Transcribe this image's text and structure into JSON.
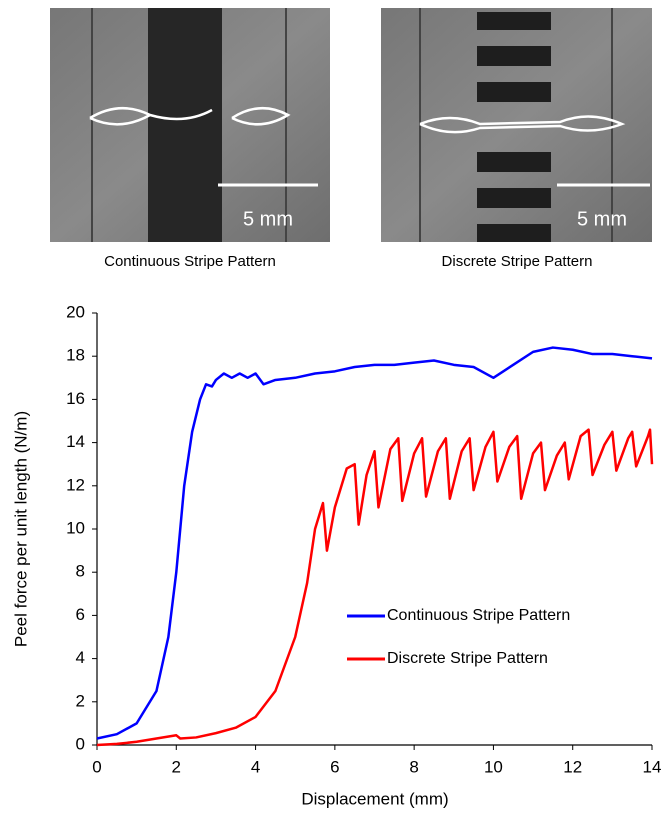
{
  "images": [
    {
      "scale_label": "5 mm",
      "caption": "Continuous Stripe Pattern"
    },
    {
      "scale_label": "5 mm",
      "caption": "Discrete Stripe Pattern"
    }
  ],
  "chart_data": {
    "type": "line",
    "x_label": "Displacement (mm)",
    "y_label": "Peel force per unit length (N/m)",
    "xlim": [
      0,
      14
    ],
    "xticks": [
      0,
      2,
      4,
      6,
      8,
      10,
      12,
      14
    ],
    "ylim": [
      0,
      20
    ],
    "yticks": [
      0,
      2,
      4,
      6,
      8,
      10,
      12,
      14,
      16,
      18,
      20
    ],
    "legend": "lower right",
    "series": [
      {
        "name": "Continuous Stripe Pattern",
        "color": "#0000ff",
        "x": [
          0,
          0.5,
          1.0,
          1.5,
          1.8,
          2.0,
          2.2,
          2.4,
          2.6,
          2.75,
          2.9,
          3.0,
          3.2,
          3.4,
          3.6,
          3.8,
          4.0,
          4.2,
          4.5,
          5,
          5.5,
          6,
          6.5,
          7,
          7.5,
          8,
          8.5,
          9,
          9.5,
          10,
          10.5,
          11,
          11.5,
          12,
          12.5,
          13,
          13.5,
          14
        ],
        "values": [
          0.3,
          0.5,
          1.0,
          2.5,
          5,
          8,
          12,
          14.5,
          16,
          16.7,
          16.6,
          16.9,
          17.2,
          17.0,
          17.2,
          17.0,
          17.2,
          16.7,
          16.9,
          17.0,
          17.2,
          17.3,
          17.5,
          17.6,
          17.6,
          17.7,
          17.8,
          17.6,
          17.5,
          17.0,
          17.6,
          18.2,
          18.4,
          18.3,
          18.1,
          18.1,
          18.0,
          17.9
        ]
      },
      {
        "name": "Discrete Stripe Pattern",
        "color": "#ff0000",
        "x": [
          0,
          0.5,
          1,
          1.5,
          2.0,
          2.1,
          2.5,
          3,
          3.5,
          4,
          4.5,
          5,
          5.3,
          5.5,
          5.7,
          5.8,
          6.0,
          6.3,
          6.5,
          6.6,
          6.8,
          7.0,
          7.1,
          7.4,
          7.6,
          7.7,
          8.0,
          8.2,
          8.3,
          8.6,
          8.8,
          8.9,
          9.2,
          9.4,
          9.5,
          9.8,
          10.0,
          10.1,
          10.4,
          10.6,
          10.7,
          11,
          11.2,
          11.3,
          11.6,
          11.8,
          11.9,
          12.2,
          12.4,
          12.5,
          12.8,
          13.0,
          13.1,
          13.4,
          13.5,
          13.6,
          13.9,
          13.95,
          14.0
        ],
        "values": [
          0,
          0.05,
          0.15,
          0.3,
          0.45,
          0.3,
          0.35,
          0.55,
          0.8,
          1.3,
          2.5,
          5,
          7.5,
          10,
          11.2,
          9.0,
          11,
          12.8,
          13.0,
          10.2,
          12.5,
          13.6,
          11.0,
          13.7,
          14.2,
          11.3,
          13.5,
          14.2,
          11.5,
          13.6,
          14.2,
          11.4,
          13.6,
          14.2,
          11.8,
          13.8,
          14.5,
          12.2,
          13.8,
          14.3,
          11.4,
          13.5,
          14.0,
          11.8,
          13.4,
          14.0,
          12.3,
          14.3,
          14.6,
          12.5,
          13.9,
          14.5,
          12.7,
          14.2,
          14.5,
          12.9,
          14.3,
          14.6,
          13.0
        ]
      }
    ]
  }
}
